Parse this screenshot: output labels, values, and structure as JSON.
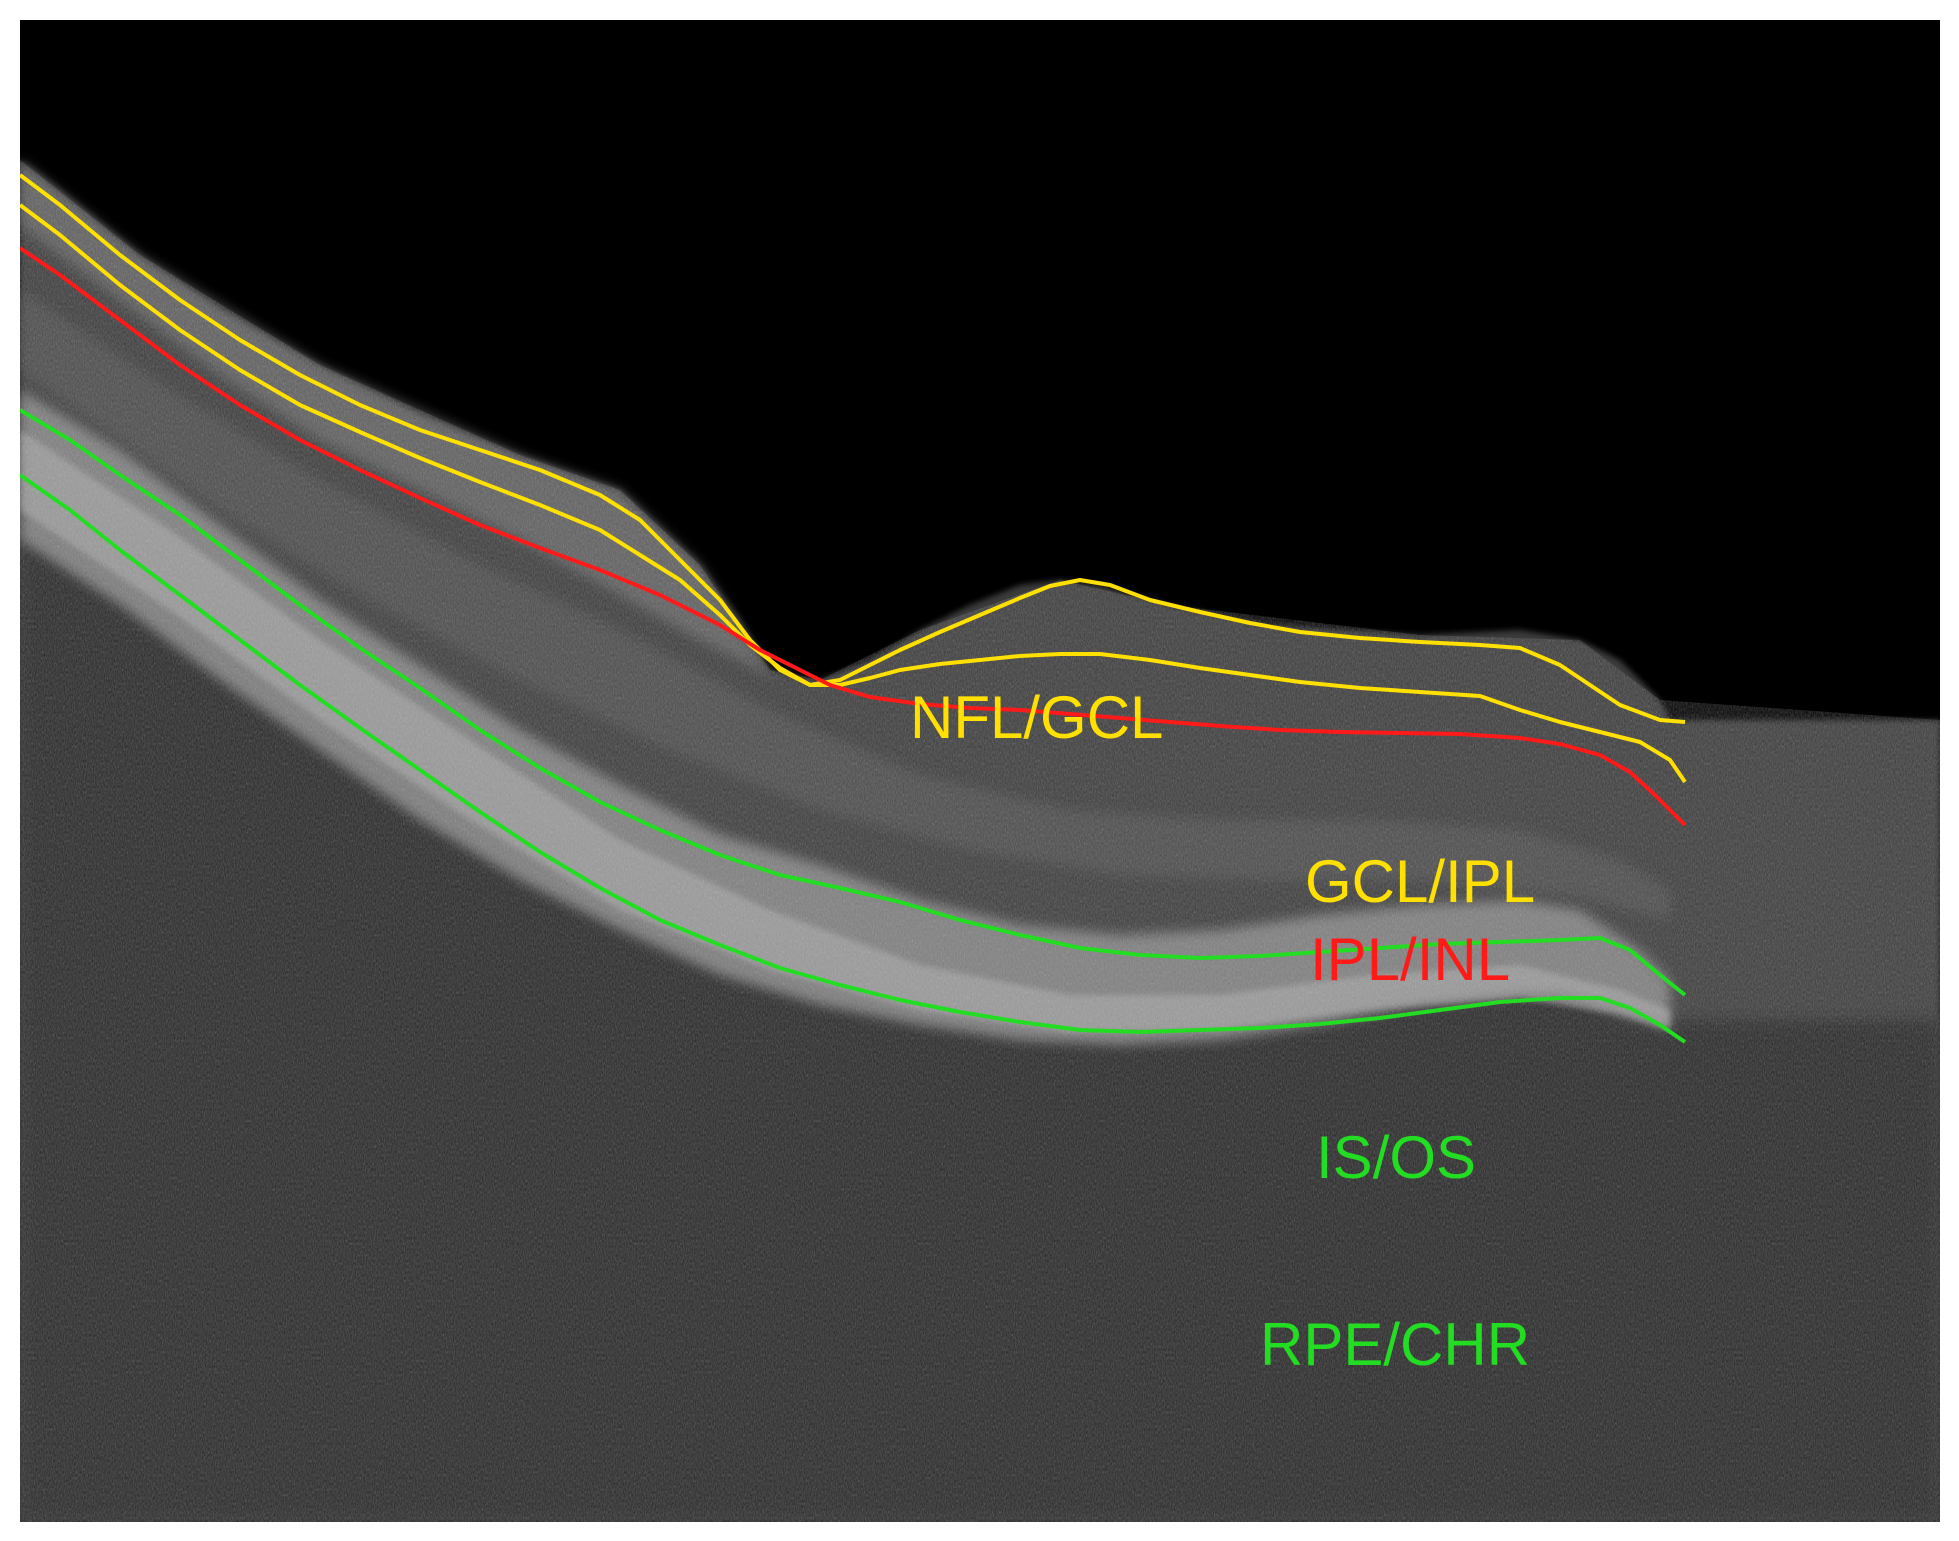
{
  "labels": {
    "nfl_gcl": {
      "text": "NFL/GCL",
      "color": "#ffe000"
    },
    "gcl_ipl": {
      "text": "GCL/IPL",
      "color": "#ffe000"
    },
    "ipl_inl": {
      "text": "IPL/INL",
      "color": "#ff1a1a"
    },
    "is_os": {
      "text": "IS/OS",
      "color": "#22dd22"
    },
    "rpe_chr": {
      "text": "RPE/CHR",
      "color": "#22dd22"
    }
  },
  "colors": {
    "background": "#000000",
    "frame": "#ffffff",
    "yellow_boundary": "#ffe000",
    "red_boundary": "#ff1a1a",
    "green_boundary": "#22dd22"
  }
}
